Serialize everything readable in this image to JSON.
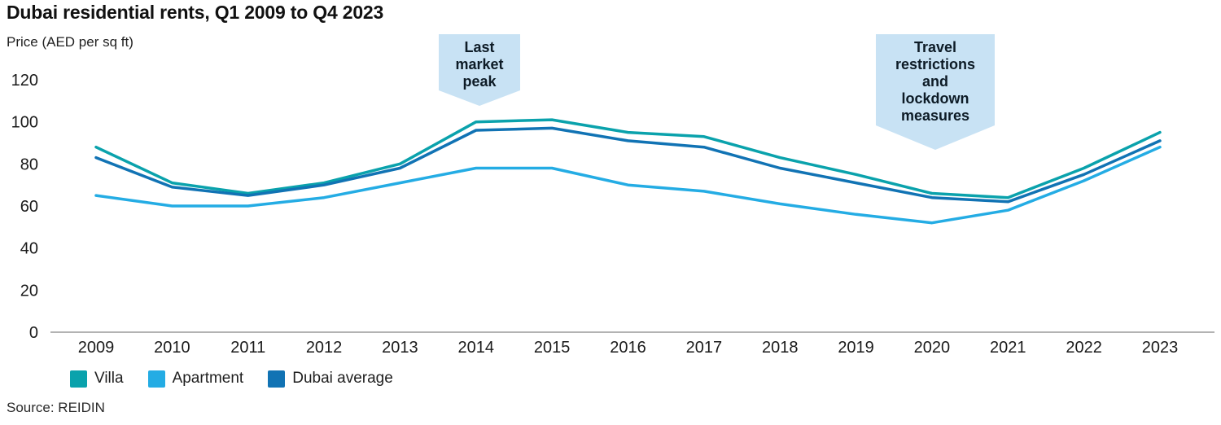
{
  "page": {
    "title": "Dubai residential rents, Q1 2009 to Q4 2023",
    "y_axis_unit_label": "Price (AED per sq ft)",
    "source": "Source: REIDIN"
  },
  "colors": {
    "axis_line": "#9a9a9a",
    "tick_text": "#1a1a1a",
    "annotation_bg": "#c8e2f4",
    "annotation_text": "#0d1b26"
  },
  "chart_data": {
    "type": "line",
    "title": "Dubai residential rents, Q1 2009 to Q4 2023",
    "ylabel": "Price (AED per sq ft)",
    "xlabel": "",
    "x": [
      2009,
      2010,
      2011,
      2012,
      2013,
      2014,
      2015,
      2016,
      2017,
      2018,
      2019,
      2020,
      2021,
      2022,
      2023
    ],
    "yticks": [
      0,
      20,
      40,
      60,
      80,
      100,
      120
    ],
    "ylim": [
      0,
      120
    ],
    "grid": false,
    "legend_position": "bottom-left",
    "series": [
      {
        "name": "Villa",
        "color": "#0aa2ac",
        "values": [
          88,
          71,
          66,
          71,
          80,
          100,
          101,
          95,
          93,
          83,
          75,
          66,
          64,
          78,
          95
        ]
      },
      {
        "name": "Apartment",
        "color": "#24ace4",
        "values": [
          65,
          60,
          60,
          64,
          71,
          78,
          78,
          70,
          67,
          61,
          56,
          52,
          58,
          72,
          88
        ]
      },
      {
        "name": "Dubai average",
        "color": "#1173b4",
        "values": [
          83,
          69,
          65,
          70,
          78,
          96,
          97,
          91,
          88,
          78,
          71,
          64,
          62,
          75,
          91
        ]
      }
    ],
    "annotations": [
      {
        "text": "Last market peak",
        "lines": [
          "Last",
          "market",
          "peak"
        ],
        "x": 2014
      },
      {
        "text": "Travel restrictions and lockdown measures",
        "lines": [
          "Travel",
          "restrictions",
          "and",
          "lockdown",
          "measures"
        ],
        "x": 2020
      }
    ],
    "source": "Source: REIDIN"
  }
}
